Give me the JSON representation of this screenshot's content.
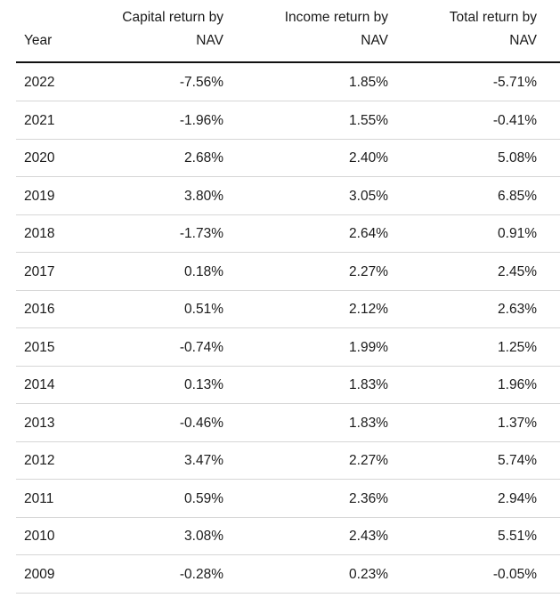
{
  "table": {
    "columns": [
      [
        "Year"
      ],
      [
        "Capital return by",
        "NAV"
      ],
      [
        "Income return by",
        "NAV"
      ],
      [
        "Total return by",
        "NAV"
      ]
    ],
    "rows": [
      [
        "2022",
        "-7.56%",
        "1.85%",
        "-5.71%"
      ],
      [
        "2021",
        "-1.96%",
        "1.55%",
        "-0.41%"
      ],
      [
        "2020",
        "2.68%",
        "2.40%",
        "5.08%"
      ],
      [
        "2019",
        "3.80%",
        "3.05%",
        "6.85%"
      ],
      [
        "2018",
        "-1.73%",
        "2.64%",
        "0.91%"
      ],
      [
        "2017",
        "0.18%",
        "2.27%",
        "2.45%"
      ],
      [
        "2016",
        "0.51%",
        "2.12%",
        "2.63%"
      ],
      [
        "2015",
        "-0.74%",
        "1.99%",
        "1.25%"
      ],
      [
        "2014",
        "0.13%",
        "1.83%",
        "1.96%"
      ],
      [
        "2013",
        "-0.46%",
        "1.83%",
        "1.37%"
      ],
      [
        "2012",
        "3.47%",
        "2.27%",
        "5.74%"
      ],
      [
        "2011",
        "0.59%",
        "2.36%",
        "2.94%"
      ],
      [
        "2010",
        "3.08%",
        "2.43%",
        "5.51%"
      ],
      [
        "2009",
        "-0.28%",
        "0.23%",
        "-0.05%"
      ]
    ]
  }
}
